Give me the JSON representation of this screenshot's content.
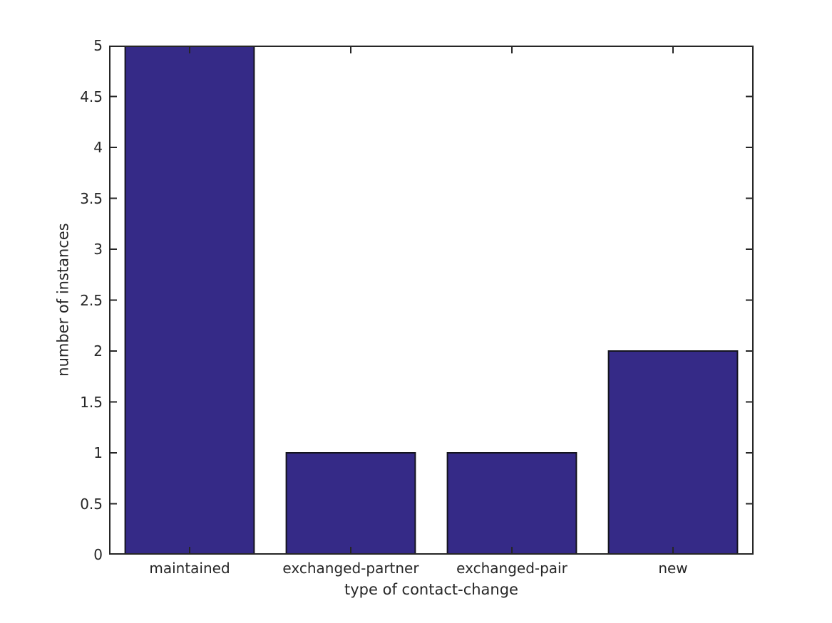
{
  "chart_data": {
    "type": "bar",
    "categories": [
      "maintained",
      "exchanged-partner",
      "exchanged-pair",
      "new"
    ],
    "values": [
      5,
      1,
      1,
      2
    ],
    "title": "",
    "xlabel": "type of contact-change",
    "ylabel": "number of instances",
    "ylim": [
      0,
      5
    ],
    "yticks": [
      0,
      0.5,
      1,
      1.5,
      2,
      2.5,
      3,
      3.5,
      4,
      4.5,
      5
    ],
    "grid": false,
    "legend": null,
    "bar_width_fraction": 0.8,
    "colors": {
      "bar_fill": "#352A87",
      "bar_edge": "#14141e",
      "axis": "#262626",
      "text": "#262626",
      "background": "#ffffff"
    }
  }
}
